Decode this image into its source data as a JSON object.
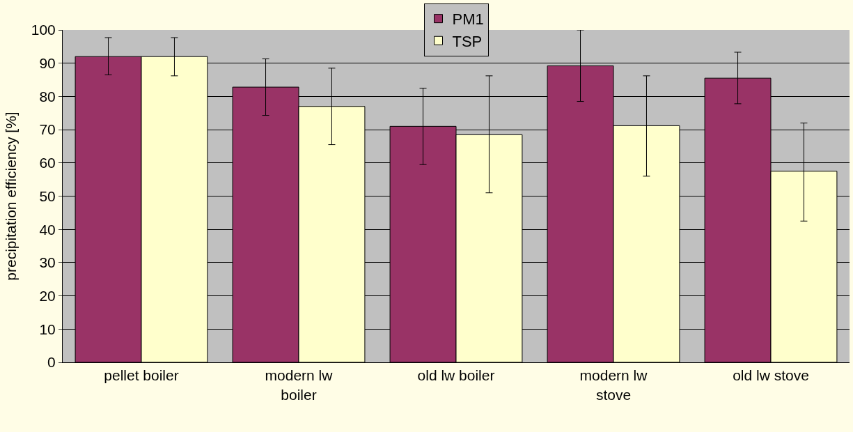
{
  "chart_data": {
    "type": "bar",
    "ylabel": "precipitation efficiency [%]",
    "categories": [
      "pellet boiler",
      "modern lw boiler",
      "old lw boiler",
      "modern lw stove",
      "old lw stove"
    ],
    "series": [
      {
        "name": "PM1",
        "color": "#993366",
        "values": [
          92,
          82.8,
          71,
          89.2,
          85.5
        ],
        "errors": [
          [
            86.5,
            97.7
          ],
          [
            74.3,
            91.3
          ],
          [
            59.5,
            82.5
          ],
          [
            78.5,
            100
          ],
          [
            77.8,
            93.3
          ]
        ]
      },
      {
        "name": "TSP",
        "color": "#ffffcc",
        "values": [
          92,
          77,
          68.5,
          71.2,
          57.5
        ],
        "errors": [
          [
            86.2,
            97.7
          ],
          [
            65.5,
            88.5
          ],
          [
            51,
            86.2
          ],
          [
            56,
            86.2
          ],
          [
            42.5,
            72
          ]
        ]
      }
    ],
    "ylim": [
      0,
      100
    ],
    "yticks": [
      0,
      10,
      20,
      30,
      40,
      50,
      60,
      70,
      80,
      90,
      100
    ],
    "grid": "y",
    "legend": "top"
  }
}
